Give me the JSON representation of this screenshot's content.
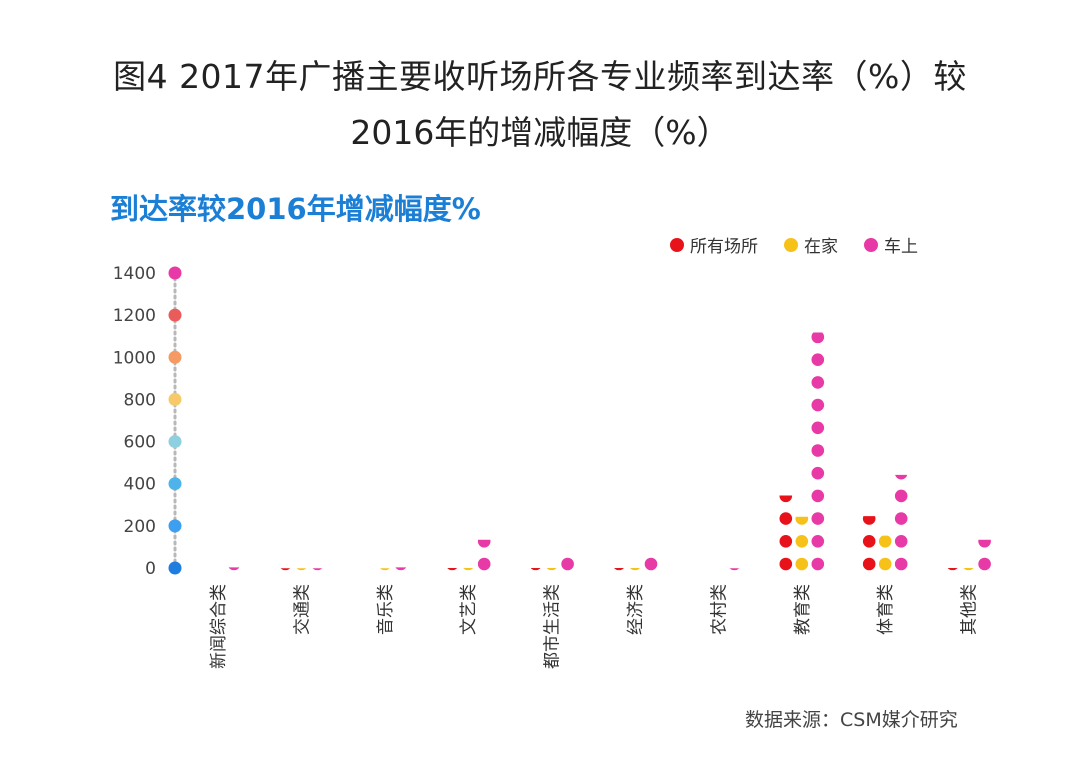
{
  "title": {
    "line1": "图4  2017年广播主要收听场所各专业频率到达率（%）较",
    "line2": "2016年的增减幅度（%）"
  },
  "subtitle": "到达率较2016年增减幅度%",
  "source": "数据来源：CSM媒介研究",
  "legend": [
    {
      "name": "所有场所",
      "color": "#e8131a"
    },
    {
      "name": "在家",
      "color": "#f6c21a"
    },
    {
      "name": "车上",
      "color": "#e83aa6"
    }
  ],
  "chart_data": {
    "type": "scatter",
    "style": "stacked-dot-columns",
    "y_ticks": [
      "1400",
      "1200",
      "1000",
      "800",
      "600",
      "400",
      "200",
      "0"
    ],
    "y_tick_values": [
      1400,
      1200,
      1000,
      800,
      600,
      400,
      200,
      0
    ],
    "ylim": [
      0,
      1400
    ],
    "categories": [
      "新闻综合类",
      "交通类",
      "音乐类",
      "文艺类",
      "都市生活类",
      "经济类",
      "农村类",
      "教育类",
      "体育类",
      "其他类"
    ],
    "series": [
      {
        "name": "所有场所",
        "color": "#e8131a",
        "values": [
          5,
          15,
          5,
          20,
          20,
          20,
          5,
          380,
          290,
          20
        ]
      },
      {
        "name": "在家",
        "color": "#f6c21a",
        "values": [
          5,
          15,
          15,
          20,
          20,
          20,
          5,
          285,
          210,
          20
        ]
      },
      {
        "name": "车上",
        "color": "#e83aa6",
        "values": [
          25,
          15,
          25,
          175,
          115,
          110,
          15,
          1170,
          470,
          175
        ]
      }
    ],
    "axis_dot_colors": [
      "#1f7de0",
      "#3d9ff0",
      "#4db3ea",
      "#8ecfe0",
      "#f6c96a",
      "#f59a62",
      "#ea5c5c",
      "#e83aa6"
    ]
  }
}
